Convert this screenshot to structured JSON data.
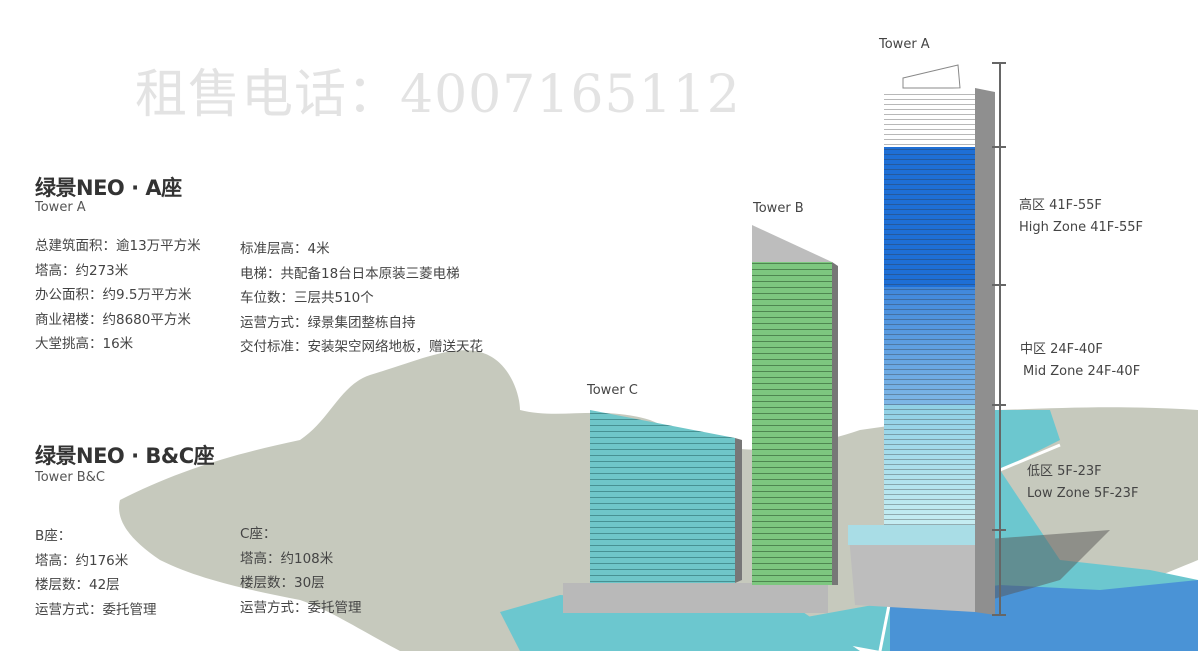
{
  "watermark": "租售电话：4007165112",
  "tower_a_section": {
    "title": "绿景NEO · A座",
    "subtitle": "Tower A",
    "specs_left": [
      "总建筑面积：逾13万平方米",
      "塔高：约273米",
      "办公面积：约9.5万平方米",
      "商业裙楼：约8680平方米",
      "大堂挑高：16米"
    ],
    "specs_right": [
      "标准层高：4米",
      "电梯：共配备18台日本原装三菱电梯",
      "车位数：三层共510个",
      "运营方式：绿景集团整栋自持",
      "交付标准：安装架空网络地板，赠送天花"
    ]
  },
  "tower_bc_section": {
    "title": "绿景NEO · B&C座",
    "subtitle": "Tower B&C",
    "b_specs": [
      "B座：",
      "塔高：约176米",
      "楼层数：42层",
      "运营方式：委托管理"
    ],
    "c_specs": [
      "C座：",
      "塔高：约108米",
      "楼层数：30层",
      "运营方式：委托管理"
    ]
  },
  "building_labels": {
    "a": "Tower A",
    "b": "Tower B",
    "c": "Tower C"
  },
  "zones": [
    {
      "cn": "高区 41F-55F",
      "en": "High Zone 41F-55F",
      "color": "#1e6fd6"
    },
    {
      "cn": "中区 24F-40F",
      "en": "Mid Zone 24F-40F",
      "color": "#5b9ee0"
    },
    {
      "cn": "低区 5F-23F",
      "en": "Low Zone 5F-23F",
      "color": "#a6dbe6"
    }
  ],
  "colors": {
    "tower_b": "#7dc77f",
    "tower_c": "#6fc6c9",
    "map_gray": "#c6c9bd",
    "map_teal": "#6cc7cf",
    "map_blue": "#4a93d6"
  }
}
